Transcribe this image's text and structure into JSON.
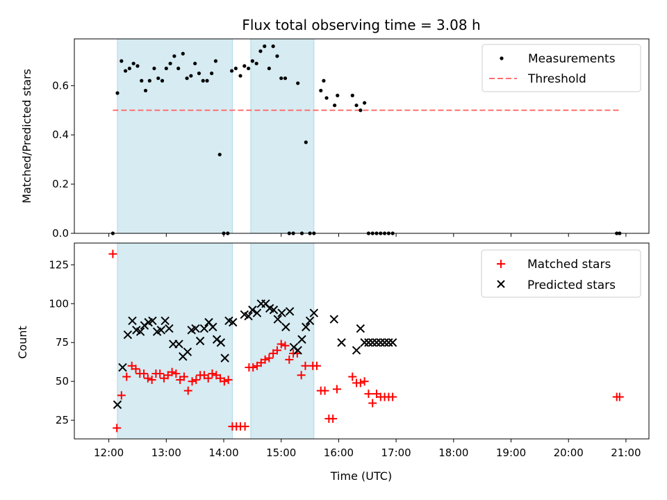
{
  "figure": {
    "title": "Flux total observing time = 3.08 h",
    "xlabel": "Time (UTC)",
    "xticks": [
      "12:00",
      "13:00",
      "14:00",
      "15:00",
      "16:00",
      "17:00",
      "18:00",
      "19:00",
      "20:00",
      "21:00"
    ],
    "shaded_color": "#add8e6",
    "shaded_intervals_hours": [
      [
        12.15,
        14.15
      ],
      [
        14.47,
        15.57
      ]
    ]
  },
  "chart_data": [
    {
      "type": "scatter",
      "title": "Flux total observing time = 3.08 h",
      "xlabel": "Time (UTC)",
      "ylabel": "Matched/Predicted stars",
      "xlim": [
        11.4,
        21.4
      ],
      "ylim": [
        0,
        0.79
      ],
      "yticks": [
        "0.0",
        "0.2",
        "0.4",
        "0.6"
      ],
      "legend_position": "top-right",
      "series": [
        {
          "name": "Measurements",
          "marker": "dot",
          "color": "#000000",
          "x": [
            12.07,
            12.15,
            12.22,
            12.29,
            12.36,
            12.43,
            12.5,
            12.57,
            12.64,
            12.71,
            12.79,
            12.86,
            12.93,
            13.0,
            13.07,
            13.14,
            13.21,
            13.29,
            13.36,
            13.43,
            13.5,
            13.57,
            13.64,
            13.71,
            13.79,
            13.86,
            13.93,
            14.0,
            14.07,
            14.14,
            14.21,
            14.29,
            14.36,
            14.43,
            14.5,
            14.57,
            14.64,
            14.71,
            14.79,
            14.86,
            14.93,
            15.0,
            15.07,
            15.14,
            15.21,
            15.29,
            15.36,
            15.43,
            15.5,
            15.57,
            15.69,
            15.74,
            15.79,
            15.93,
            15.98,
            16.24,
            16.31,
            16.38,
            16.45,
            16.52,
            16.59,
            16.66,
            16.73,
            16.8,
            16.87,
            16.94,
            20.84,
            20.89
          ],
          "y": [
            0.0,
            0.57,
            0.7,
            0.66,
            0.67,
            0.69,
            0.68,
            0.62,
            0.58,
            0.62,
            0.67,
            0.63,
            0.62,
            0.67,
            0.69,
            0.72,
            0.67,
            0.73,
            0.63,
            0.64,
            0.69,
            0.65,
            0.62,
            0.62,
            0.65,
            0.7,
            0.32,
            0.0,
            0.0,
            0.66,
            0.67,
            0.64,
            0.68,
            0.67,
            0.7,
            0.69,
            0.74,
            0.76,
            0.67,
            0.76,
            0.72,
            0.63,
            0.63,
            0.0,
            0.0,
            0.61,
            0.0,
            0.37,
            0.0,
            0.0,
            0.58,
            0.62,
            0.55,
            0.52,
            0.56,
            0.56,
            0.52,
            0.5,
            0.53,
            0.0,
            0.0,
            0.0,
            0.0,
            0.0,
            0.0,
            0.0,
            0.0,
            0.0
          ]
        },
        {
          "name": "Threshold",
          "line_style": "dashed",
          "color": "#ff7070",
          "x": [
            12.07,
            20.89
          ],
          "y": [
            0.5,
            0.5
          ]
        }
      ]
    },
    {
      "type": "scatter",
      "xlabel": "Time (UTC)",
      "ylabel": "Count",
      "xlim": [
        11.4,
        21.4
      ],
      "ylim": [
        13,
        139
      ],
      "yticks": [
        "25",
        "50",
        "75",
        "100",
        "125"
      ],
      "legend_position": "top-right",
      "series": [
        {
          "name": "Matched stars",
          "marker": "plus",
          "color": "#ff0000",
          "x": [
            12.07,
            12.14,
            12.22,
            12.31,
            12.4,
            12.47,
            12.54,
            12.61,
            12.68,
            12.75,
            12.82,
            12.89,
            12.96,
            13.03,
            13.1,
            13.17,
            13.24,
            13.31,
            13.38,
            13.45,
            13.52,
            13.59,
            13.66,
            13.73,
            13.8,
            13.87,
            13.94,
            14.01,
            14.08,
            14.15,
            14.22,
            14.29,
            14.37,
            14.44,
            14.51,
            14.58,
            14.65,
            14.72,
            14.79,
            14.86,
            14.93,
            15.0,
            15.07,
            15.14,
            15.21,
            15.28,
            15.35,
            15.42,
            15.55,
            15.62,
            15.69,
            15.76,
            15.83,
            15.9,
            15.97,
            16.24,
            16.31,
            16.38,
            16.45,
            16.52,
            16.59,
            16.66,
            16.73,
            16.8,
            16.87,
            16.94,
            20.84,
            20.89
          ],
          "y": [
            132,
            20,
            41,
            53,
            60,
            58,
            55,
            55,
            52,
            51,
            55,
            55,
            52,
            54,
            56,
            55,
            51,
            53,
            44,
            50,
            51,
            54,
            54,
            52,
            55,
            54,
            52,
            50,
            51,
            21,
            21,
            21,
            21,
            59,
            59,
            60,
            62,
            64,
            65,
            68,
            70,
            74,
            73,
            64,
            68,
            68,
            54,
            60,
            60,
            60,
            44,
            44,
            26,
            26,
            45,
            53,
            49,
            49,
            50,
            42,
            36,
            42,
            40,
            40,
            40,
            40,
            40,
            40
          ]
        },
        {
          "name": "Predicted stars",
          "marker": "x",
          "color": "#000000",
          "x": [
            12.15,
            12.24,
            12.33,
            12.41,
            12.48,
            12.55,
            12.62,
            12.69,
            12.76,
            12.84,
            12.91,
            12.98,
            13.05,
            13.12,
            13.22,
            13.29,
            13.37,
            13.44,
            13.51,
            13.59,
            13.66,
            13.74,
            13.81,
            13.88,
            13.95,
            14.02,
            14.09,
            14.16,
            14.36,
            14.43,
            14.5,
            14.58,
            14.65,
            14.73,
            14.8,
            14.87,
            14.94,
            15.01,
            15.08,
            15.15,
            15.22,
            15.29,
            15.36,
            15.43,
            15.5,
            15.57,
            15.92,
            16.05,
            16.31,
            16.38,
            16.45,
            16.52,
            16.59,
            16.66,
            16.73,
            16.8,
            16.87,
            16.94
          ],
          "y": [
            35,
            59,
            80,
            89,
            83,
            82,
            86,
            88,
            89,
            82,
            83,
            89,
            84,
            74,
            74,
            66,
            69,
            83,
            84,
            76,
            84,
            88,
            85,
            77,
            75,
            65,
            89,
            88,
            93,
            92,
            96,
            94,
            100,
            100,
            97,
            96,
            90,
            94,
            85,
            95,
            72,
            70,
            77,
            85,
            89,
            94,
            90,
            75,
            70,
            84,
            75,
            75,
            75,
            75,
            75,
            75,
            75,
            75
          ]
        }
      ]
    }
  ]
}
